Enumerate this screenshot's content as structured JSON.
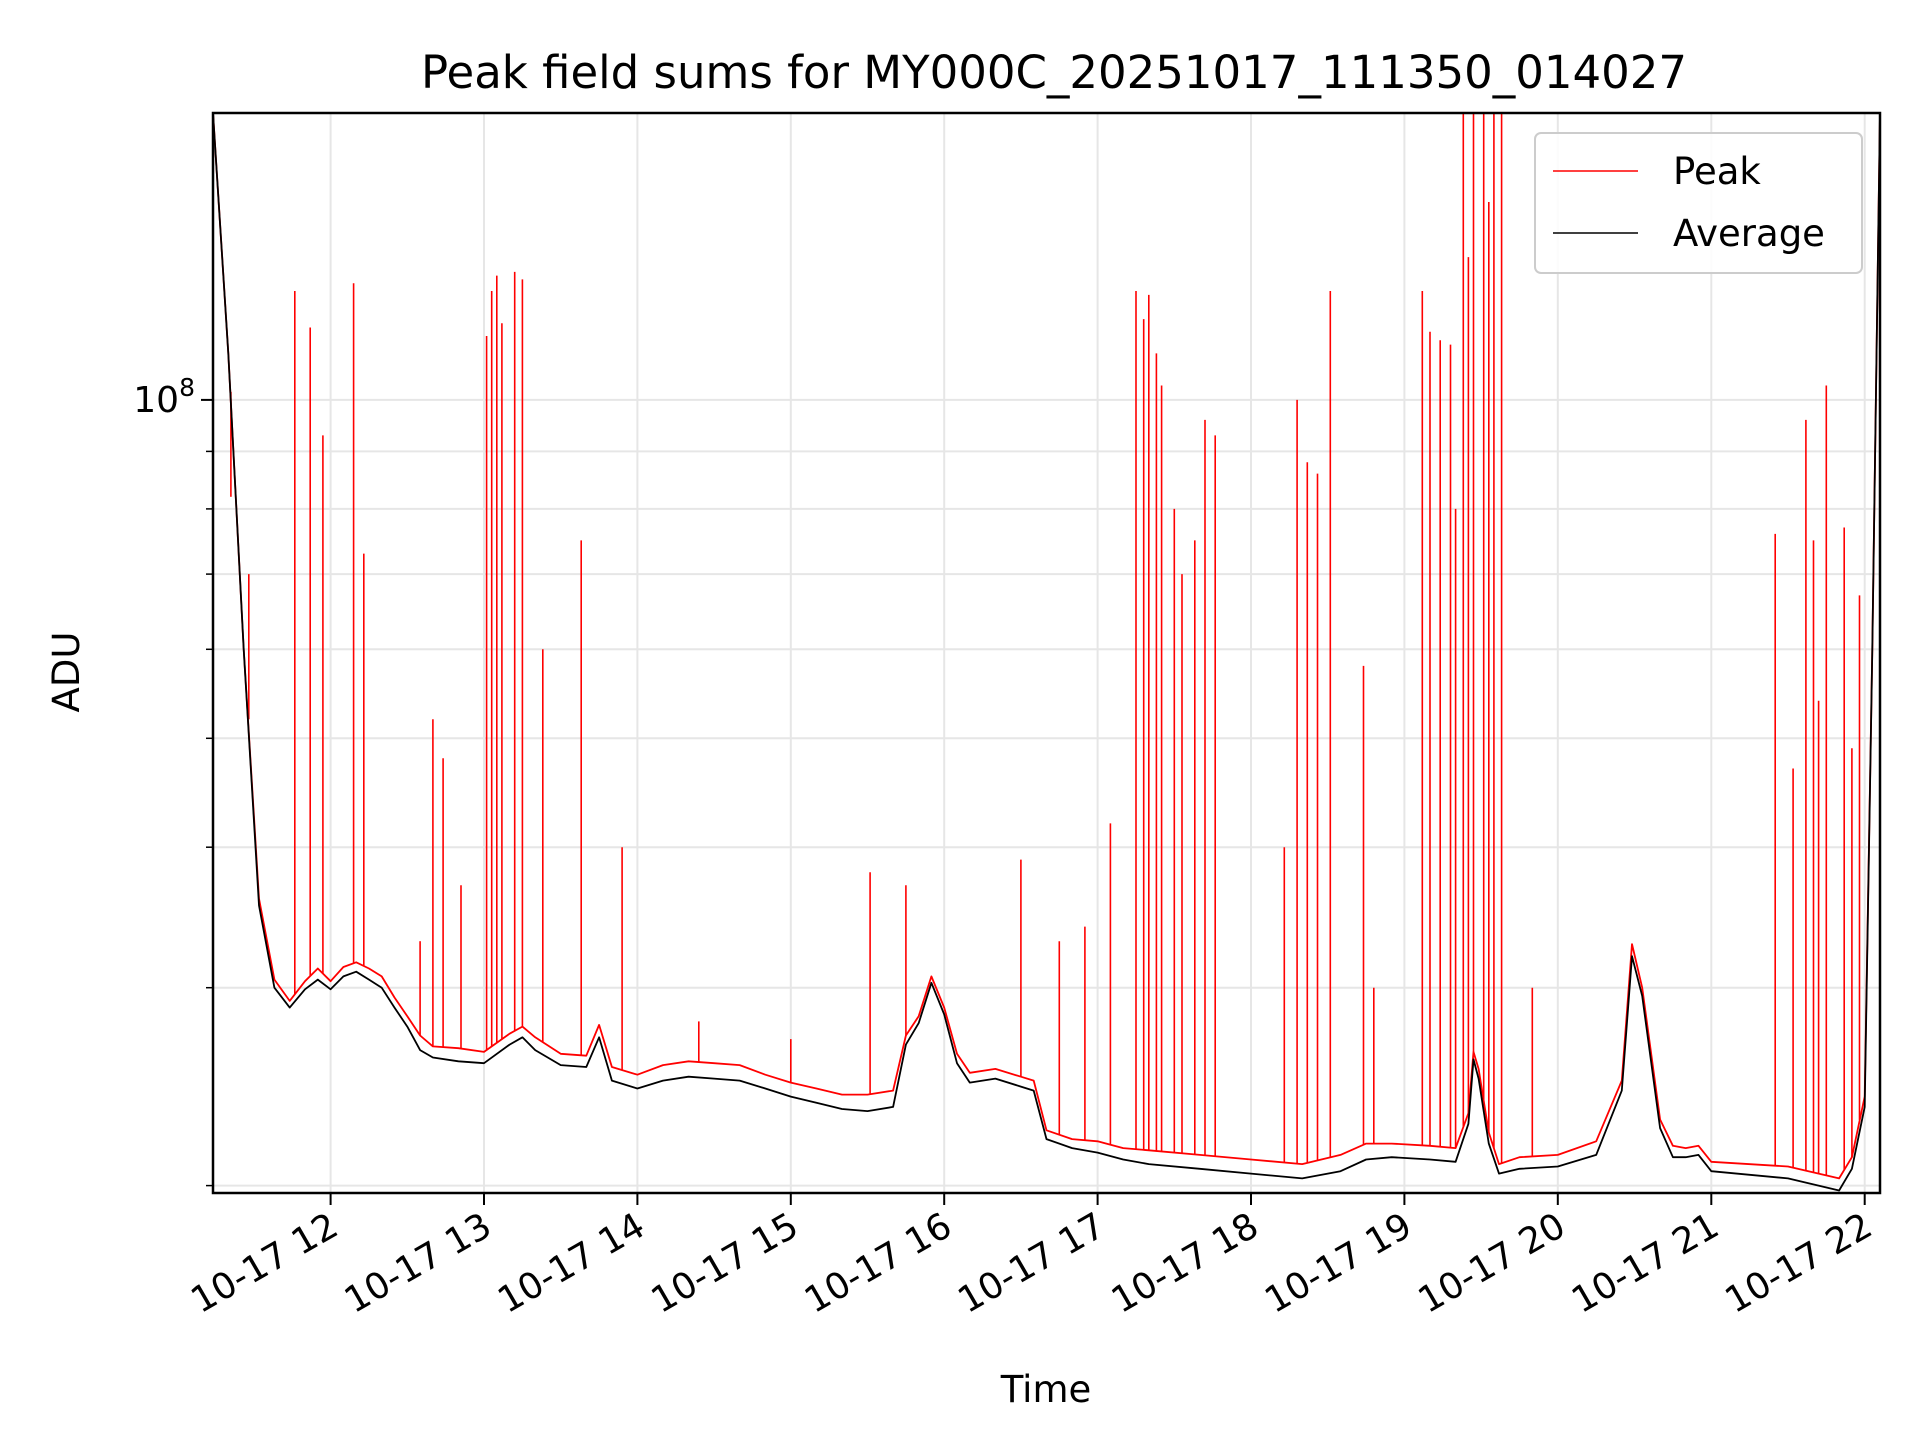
{
  "chart_data": {
    "type": "line",
    "title": "Peak field sums for MY000C_20251017_111350_014027",
    "xlabel": "Time",
    "ylabel": "ADU",
    "yscale": "log",
    "grid": true,
    "legend_position": "top-right",
    "x_start": "2025-10-17 11:14",
    "x_end": "2025-10-17 22:06",
    "xlim": [
      "2025-10-17 11:14",
      "2025-10-17 22:06"
    ],
    "ylim": [
      19700000,
      180000000
    ],
    "y_tick_labels": [
      {
        "value": 100000000,
        "label": "10^8"
      }
    ],
    "x_tick_labels": [
      {
        "time": "2025-10-17 12:00",
        "label": "10-17 12"
      },
      {
        "time": "2025-10-17 13:00",
        "label": "10-17 13"
      },
      {
        "time": "2025-10-17 14:00",
        "label": "10-17 14"
      },
      {
        "time": "2025-10-17 15:00",
        "label": "10-17 15"
      },
      {
        "time": "2025-10-17 16:00",
        "label": "10-17 16"
      },
      {
        "time": "2025-10-17 17:00",
        "label": "10-17 17"
      },
      {
        "time": "2025-10-17 18:00",
        "label": "10-17 18"
      },
      {
        "time": "2025-10-17 19:00",
        "label": "10-17 19"
      },
      {
        "time": "2025-10-17 20:00",
        "label": "10-17 20"
      },
      {
        "time": "2025-10-17 21:00",
        "label": "10-17 21"
      },
      {
        "time": "2025-10-17 22:00",
        "label": "10-17 22"
      }
    ],
    "series": [
      {
        "name": "Peak",
        "color": "#ff0000",
        "points": [
          [
            "2025-10-17 11:14",
            180000000
          ],
          [
            "2025-10-17 11:20",
            110000000
          ],
          [
            "2025-10-17 11:26",
            60000000
          ],
          [
            "2025-10-17 11:32",
            36000000
          ],
          [
            "2025-10-17 11:38",
            30500000
          ],
          [
            "2025-10-17 11:44",
            29200000
          ],
          [
            "2025-10-17 11:50",
            30400000
          ],
          [
            "2025-10-17 11:55",
            31200000
          ],
          [
            "2025-10-17 12:00",
            30400000
          ],
          [
            "2025-10-17 12:05",
            31300000
          ],
          [
            "2025-10-17 12:10",
            31600000
          ],
          [
            "2025-10-17 12:15",
            31200000
          ],
          [
            "2025-10-17 12:20",
            30700000
          ],
          [
            "2025-10-17 12:25",
            29400000
          ],
          [
            "2025-10-17 12:30",
            28300000
          ],
          [
            "2025-10-17 12:35",
            27200000
          ],
          [
            "2025-10-17 12:40",
            26600000
          ],
          [
            "2025-10-17 12:50",
            26500000
          ],
          [
            "2025-10-17 13:00",
            26300000
          ],
          [
            "2025-10-17 13:10",
            27300000
          ],
          [
            "2025-10-17 13:15",
            27700000
          ],
          [
            "2025-10-17 13:20",
            27100000
          ],
          [
            "2025-10-17 13:30",
            26200000
          ],
          [
            "2025-10-17 13:40",
            26100000
          ],
          [
            "2025-10-17 13:45",
            27800000
          ],
          [
            "2025-10-17 13:50",
            25500000
          ],
          [
            "2025-10-17 14:00",
            25100000
          ],
          [
            "2025-10-17 14:10",
            25600000
          ],
          [
            "2025-10-17 14:20",
            25800000
          ],
          [
            "2025-10-17 14:30",
            25700000
          ],
          [
            "2025-10-17 14:40",
            25600000
          ],
          [
            "2025-10-17 14:50",
            25100000
          ],
          [
            "2025-10-17 15:00",
            24700000
          ],
          [
            "2025-10-17 15:10",
            24400000
          ],
          [
            "2025-10-17 15:20",
            24100000
          ],
          [
            "2025-10-17 15:30",
            24100000
          ],
          [
            "2025-10-17 15:40",
            24300000
          ],
          [
            "2025-10-17 15:45",
            27200000
          ],
          [
            "2025-10-17 15:50",
            28300000
          ],
          [
            "2025-10-17 15:55",
            30700000
          ],
          [
            "2025-10-17 16:00",
            28800000
          ],
          [
            "2025-10-17 16:05",
            26200000
          ],
          [
            "2025-10-17 16:10",
            25200000
          ],
          [
            "2025-10-17 16:20",
            25400000
          ],
          [
            "2025-10-17 16:30",
            25000000
          ],
          [
            "2025-10-17 16:35",
            24800000
          ],
          [
            "2025-10-17 16:40",
            22400000
          ],
          [
            "2025-10-17 16:50",
            22000000
          ],
          [
            "2025-10-17 17:00",
            21900000
          ],
          [
            "2025-10-17 17:10",
            21600000
          ],
          [
            "2025-10-17 17:20",
            21500000
          ],
          [
            "2025-10-17 17:40",
            21300000
          ],
          [
            "2025-10-17 18:00",
            21100000
          ],
          [
            "2025-10-17 18:20",
            20900000
          ],
          [
            "2025-10-17 18:35",
            21300000
          ],
          [
            "2025-10-17 18:45",
            21800000
          ],
          [
            "2025-10-17 18:55",
            21800000
          ],
          [
            "2025-10-17 19:10",
            21700000
          ],
          [
            "2025-10-17 19:20",
            21600000
          ],
          [
            "2025-10-17 19:25",
            23200000
          ],
          [
            "2025-10-17 19:27",
            26300000
          ],
          [
            "2025-10-17 19:29",
            25400000
          ],
          [
            "2025-10-17 19:33",
            22300000
          ],
          [
            "2025-10-17 19:37",
            20900000
          ],
          [
            "2025-10-17 19:45",
            21200000
          ],
          [
            "2025-10-17 20:00",
            21300000
          ],
          [
            "2025-10-17 20:15",
            21900000
          ],
          [
            "2025-10-17 20:25",
            24800000
          ],
          [
            "2025-10-17 20:29",
            32800000
          ],
          [
            "2025-10-17 20:33",
            30000000
          ],
          [
            "2025-10-17 20:40",
            22900000
          ],
          [
            "2025-10-17 20:45",
            21700000
          ],
          [
            "2025-10-17 20:50",
            21600000
          ],
          [
            "2025-10-17 20:55",
            21700000
          ],
          [
            "2025-10-17 21:00",
            21000000
          ],
          [
            "2025-10-17 21:30",
            20800000
          ],
          [
            "2025-10-17 21:50",
            20300000
          ],
          [
            "2025-10-17 21:55",
            21200000
          ],
          [
            "2025-10-17 22:00",
            24000000
          ],
          [
            "2025-10-17 22:03",
            60000000
          ],
          [
            "2025-10-17 22:06",
            180000000
          ]
        ],
        "spikes": [
          [
            "2025-10-17 11:21",
            82000000
          ],
          [
            "2025-10-17 11:28",
            70000000
          ],
          [
            "2025-10-17 11:46",
            125000000
          ],
          [
            "2025-10-17 11:52",
            116000000
          ],
          [
            "2025-10-17 11:57",
            93000000
          ],
          [
            "2025-10-17 12:09",
            127000000
          ],
          [
            "2025-10-17 12:13",
            73000000
          ],
          [
            "2025-10-17 12:35",
            33000000
          ],
          [
            "2025-10-17 12:40",
            52000000
          ],
          [
            "2025-10-17 12:44",
            48000000
          ],
          [
            "2025-10-17 12:51",
            37000000
          ],
          [
            "2025-10-17 13:01",
            114000000
          ],
          [
            "2025-10-17 13:03",
            125000000
          ],
          [
            "2025-10-17 13:05",
            129000000
          ],
          [
            "2025-10-17 13:07",
            117000000
          ],
          [
            "2025-10-17 13:12",
            130000000
          ],
          [
            "2025-10-17 13:15",
            128000000
          ],
          [
            "2025-10-17 13:23",
            60000000
          ],
          [
            "2025-10-17 13:38",
            75000000
          ],
          [
            "2025-10-17 13:54",
            40000000
          ],
          [
            "2025-10-17 14:24",
            28000000
          ],
          [
            "2025-10-17 15:00",
            27000000
          ],
          [
            "2025-10-17 15:31",
            38000000
          ],
          [
            "2025-10-17 15:45",
            37000000
          ],
          [
            "2025-10-17 16:30",
            39000000
          ],
          [
            "2025-10-17 16:45",
            33000000
          ],
          [
            "2025-10-17 16:55",
            34000000
          ],
          [
            "2025-10-17 17:05",
            42000000
          ],
          [
            "2025-10-17 17:15",
            125000000
          ],
          [
            "2025-10-17 17:18",
            118000000
          ],
          [
            "2025-10-17 17:20",
            124000000
          ],
          [
            "2025-10-17 17:23",
            110000000
          ],
          [
            "2025-10-17 17:25",
            103000000
          ],
          [
            "2025-10-17 17:30",
            80000000
          ],
          [
            "2025-10-17 17:33",
            70000000
          ],
          [
            "2025-10-17 17:38",
            75000000
          ],
          [
            "2025-10-17 17:42",
            96000000
          ],
          [
            "2025-10-17 17:46",
            93000000
          ],
          [
            "2025-10-17 18:13",
            40000000
          ],
          [
            "2025-10-17 18:18",
            100000000
          ],
          [
            "2025-10-17 18:22",
            88000000
          ],
          [
            "2025-10-17 18:26",
            86000000
          ],
          [
            "2025-10-17 18:31",
            125000000
          ],
          [
            "2025-10-17 18:44",
            58000000
          ],
          [
            "2025-10-17 18:48",
            30000000
          ],
          [
            "2025-10-17 19:07",
            125000000
          ],
          [
            "2025-10-17 19:10",
            115000000
          ],
          [
            "2025-10-17 19:14",
            113000000
          ],
          [
            "2025-10-17 19:18",
            112000000
          ],
          [
            "2025-10-17 19:20",
            80000000
          ],
          [
            "2025-10-17 19:23",
            180000000
          ],
          [
            "2025-10-17 19:25",
            134000000
          ],
          [
            "2025-10-17 19:27",
            180000000
          ],
          [
            "2025-10-17 19:31",
            180000000
          ],
          [
            "2025-10-17 19:33",
            150000000
          ],
          [
            "2025-10-17 19:35",
            180000000
          ],
          [
            "2025-10-17 19:38",
            180000000
          ],
          [
            "2025-10-17 19:50",
            30000000
          ],
          [
            "2025-10-17 21:25",
            76000000
          ],
          [
            "2025-10-17 21:32",
            47000000
          ],
          [
            "2025-10-17 21:37",
            96000000
          ],
          [
            "2025-10-17 21:40",
            75000000
          ],
          [
            "2025-10-17 21:42",
            54000000
          ],
          [
            "2025-10-17 21:45",
            103000000
          ],
          [
            "2025-10-17 21:52",
            77000000
          ],
          [
            "2025-10-17 21:55",
            49000000
          ],
          [
            "2025-10-17 21:58",
            67000000
          ]
        ]
      },
      {
        "name": "Average",
        "color": "#000000",
        "points": [
          [
            "2025-10-17 11:14",
            180000000
          ],
          [
            "2025-10-17 11:20",
            110000000
          ],
          [
            "2025-10-17 11:26",
            60000000
          ],
          [
            "2025-10-17 11:32",
            35500000
          ],
          [
            "2025-10-17 11:38",
            30000000
          ],
          [
            "2025-10-17 11:44",
            28800000
          ],
          [
            "2025-10-17 11:50",
            29900000
          ],
          [
            "2025-10-17 11:55",
            30500000
          ],
          [
            "2025-10-17 12:00",
            29900000
          ],
          [
            "2025-10-17 12:05",
            30700000
          ],
          [
            "2025-10-17 12:10",
            31000000
          ],
          [
            "2025-10-17 12:15",
            30500000
          ],
          [
            "2025-10-17 12:20",
            30000000
          ],
          [
            "2025-10-17 12:25",
            28800000
          ],
          [
            "2025-10-17 12:30",
            27700000
          ],
          [
            "2025-10-17 12:35",
            26400000
          ],
          [
            "2025-10-17 12:40",
            26000000
          ],
          [
            "2025-10-17 12:50",
            25800000
          ],
          [
            "2025-10-17 13:00",
            25700000
          ],
          [
            "2025-10-17 13:10",
            26700000
          ],
          [
            "2025-10-17 13:15",
            27100000
          ],
          [
            "2025-10-17 13:20",
            26400000
          ],
          [
            "2025-10-17 13:30",
            25600000
          ],
          [
            "2025-10-17 13:40",
            25500000
          ],
          [
            "2025-10-17 13:45",
            27100000
          ],
          [
            "2025-10-17 13:50",
            24800000
          ],
          [
            "2025-10-17 14:00",
            24400000
          ],
          [
            "2025-10-17 14:10",
            24800000
          ],
          [
            "2025-10-17 14:20",
            25000000
          ],
          [
            "2025-10-17 14:30",
            24900000
          ],
          [
            "2025-10-17 14:40",
            24800000
          ],
          [
            "2025-10-17 14:50",
            24400000
          ],
          [
            "2025-10-17 15:00",
            24000000
          ],
          [
            "2025-10-17 15:10",
            23700000
          ],
          [
            "2025-10-17 15:20",
            23400000
          ],
          [
            "2025-10-17 15:30",
            23300000
          ],
          [
            "2025-10-17 15:40",
            23500000
          ],
          [
            "2025-10-17 15:45",
            26700000
          ],
          [
            "2025-10-17 15:50",
            27900000
          ],
          [
            "2025-10-17 15:55",
            30300000
          ],
          [
            "2025-10-17 16:00",
            28400000
          ],
          [
            "2025-10-17 16:05",
            25700000
          ],
          [
            "2025-10-17 16:10",
            24700000
          ],
          [
            "2025-10-17 16:20",
            24900000
          ],
          [
            "2025-10-17 16:30",
            24500000
          ],
          [
            "2025-10-17 16:35",
            24300000
          ],
          [
            "2025-10-17 16:40",
            22000000
          ],
          [
            "2025-10-17 16:50",
            21600000
          ],
          [
            "2025-10-17 17:00",
            21400000
          ],
          [
            "2025-10-17 17:10",
            21100000
          ],
          [
            "2025-10-17 17:20",
            20900000
          ],
          [
            "2025-10-17 17:40",
            20700000
          ],
          [
            "2025-10-17 18:00",
            20500000
          ],
          [
            "2025-10-17 18:20",
            20300000
          ],
          [
            "2025-10-17 18:35",
            20600000
          ],
          [
            "2025-10-17 18:45",
            21100000
          ],
          [
            "2025-10-17 18:55",
            21200000
          ],
          [
            "2025-10-17 19:10",
            21100000
          ],
          [
            "2025-10-17 19:20",
            21000000
          ],
          [
            "2025-10-17 19:25",
            22700000
          ],
          [
            "2025-10-17 19:27",
            25900000
          ],
          [
            "2025-10-17 19:29",
            24900000
          ],
          [
            "2025-10-17 19:33",
            21800000
          ],
          [
            "2025-10-17 19:37",
            20500000
          ],
          [
            "2025-10-17 19:45",
            20700000
          ],
          [
            "2025-10-17 20:00",
            20800000
          ],
          [
            "2025-10-17 20:15",
            21300000
          ],
          [
            "2025-10-17 20:25",
            24300000
          ],
          [
            "2025-10-17 20:29",
            32000000
          ],
          [
            "2025-10-17 20:33",
            29500000
          ],
          [
            "2025-10-17 20:40",
            22500000
          ],
          [
            "2025-10-17 20:45",
            21200000
          ],
          [
            "2025-10-17 20:50",
            21200000
          ],
          [
            "2025-10-17 20:55",
            21300000
          ],
          [
            "2025-10-17 21:00",
            20600000
          ],
          [
            "2025-10-17 21:30",
            20300000
          ],
          [
            "2025-10-17 21:50",
            19800000
          ],
          [
            "2025-10-17 21:55",
            20700000
          ],
          [
            "2025-10-17 22:00",
            23500000
          ],
          [
            "2025-10-17 22:03",
            60000000
          ],
          [
            "2025-10-17 22:06",
            180000000
          ]
        ]
      }
    ]
  }
}
